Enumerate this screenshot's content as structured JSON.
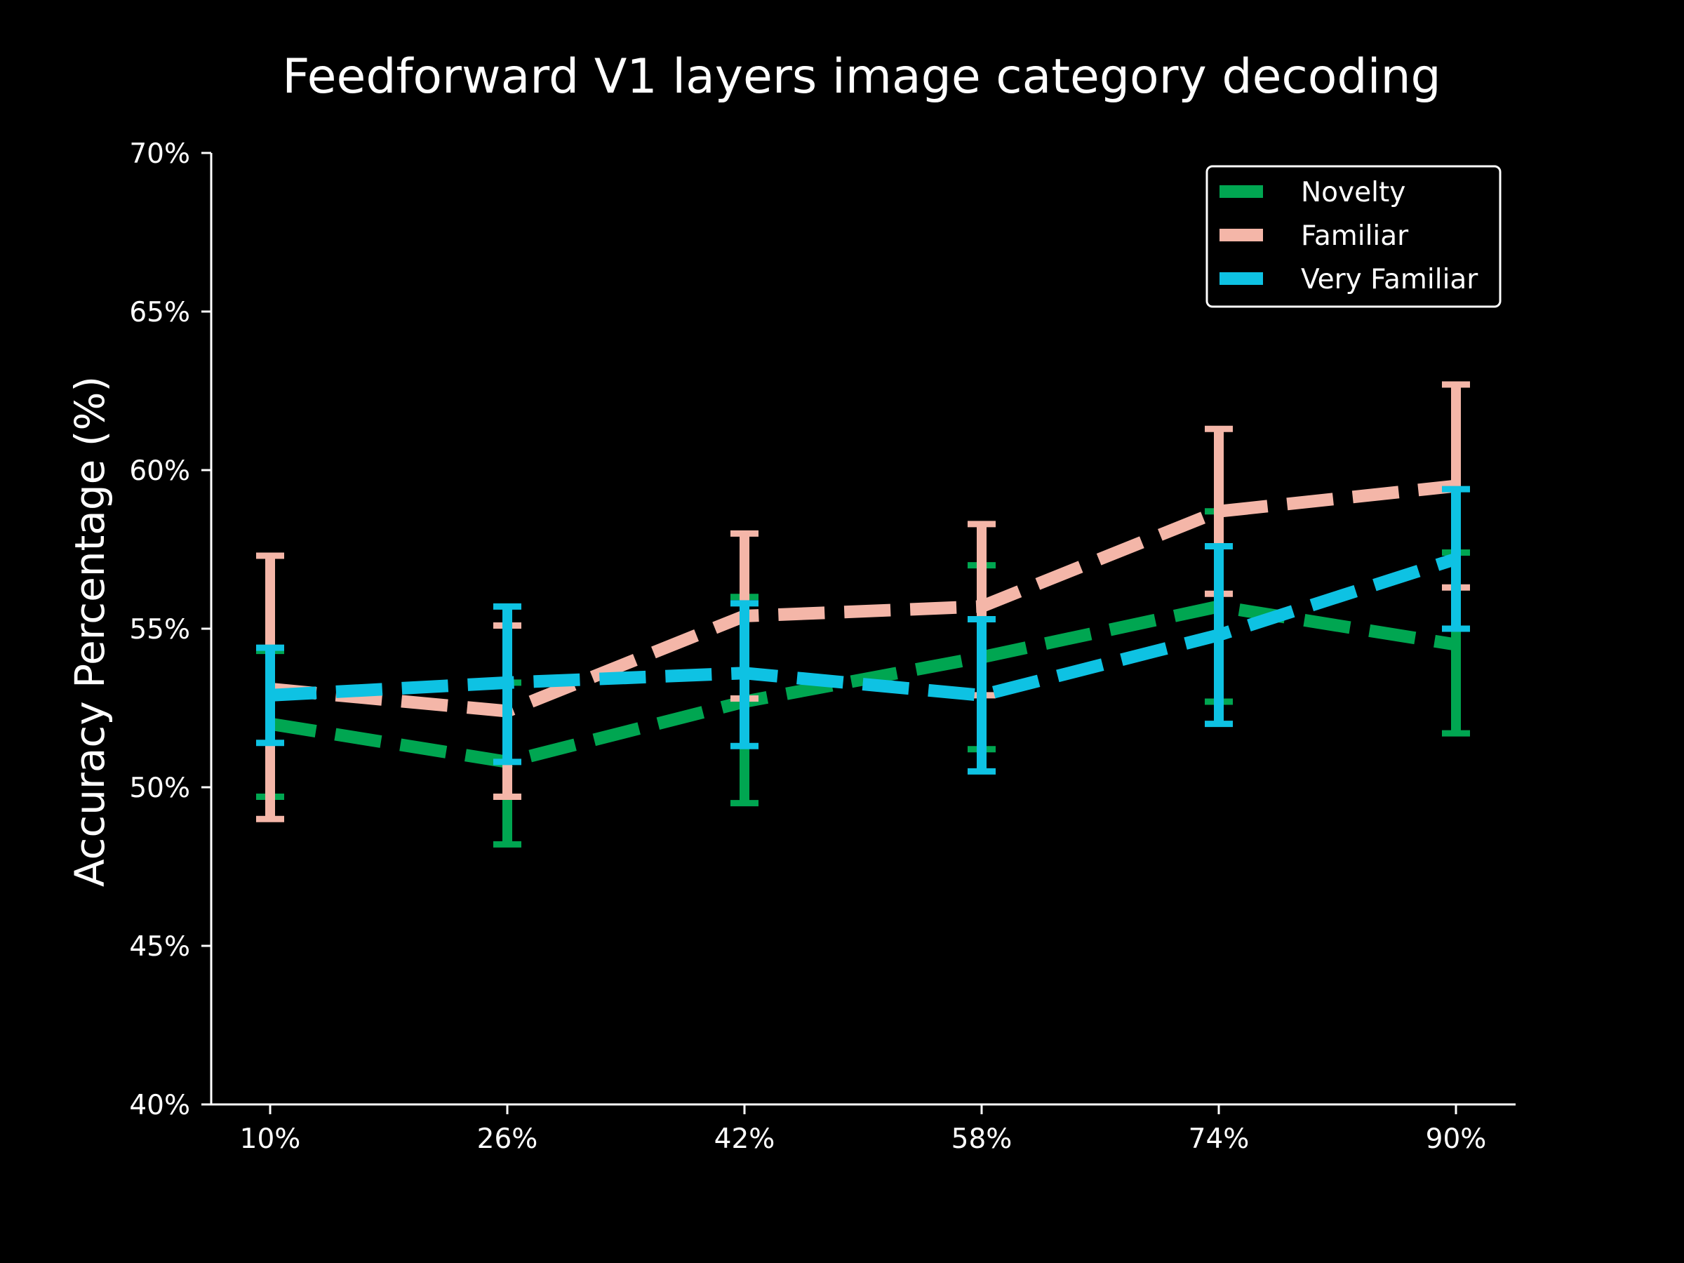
{
  "chart_data": {
    "type": "line",
    "title": "Feedforward V1 layers image category decoding",
    "xlabel": "",
    "ylabel": "Accuracy Percentage (%)",
    "categories": [
      "10%",
      "26%",
      "42%",
      "58%",
      "74%",
      "90%"
    ],
    "ylim": [
      40,
      70
    ],
    "yticks": [
      40,
      45,
      50,
      55,
      60,
      65,
      70
    ],
    "ytick_labels": [
      "40%",
      "45%",
      "50%",
      "55%",
      "60%",
      "65%",
      "70%"
    ],
    "line_style": "dashed",
    "error_bars": true,
    "grid": false,
    "legend_position": "top-right",
    "series": [
      {
        "name": "Novelty",
        "color": "#00a651",
        "values": [
          52.0,
          50.8,
          52.7,
          54.1,
          55.7,
          54.5
        ],
        "err_low": [
          49.7,
          48.2,
          49.5,
          51.2,
          52.7,
          51.7
        ],
        "err_high": [
          54.3,
          53.3,
          56.0,
          57.0,
          58.7,
          57.4
        ]
      },
      {
        "name": "Familiar",
        "color": "#f4b6a8",
        "values": [
          53.1,
          52.4,
          55.4,
          55.7,
          58.7,
          59.5
        ],
        "err_low": [
          49.0,
          49.7,
          52.8,
          52.9,
          56.1,
          56.3
        ],
        "err_high": [
          57.3,
          55.1,
          58.0,
          58.3,
          61.3,
          62.7
        ]
      },
      {
        "name": "Very Familiar",
        "color": "#0ec2e3",
        "values": [
          52.9,
          53.3,
          53.6,
          52.9,
          54.8,
          57.2
        ],
        "err_low": [
          51.4,
          50.8,
          51.3,
          50.5,
          52.0,
          55.0
        ],
        "err_high": [
          54.4,
          55.7,
          55.8,
          55.3,
          57.6,
          59.4
        ]
      }
    ]
  }
}
